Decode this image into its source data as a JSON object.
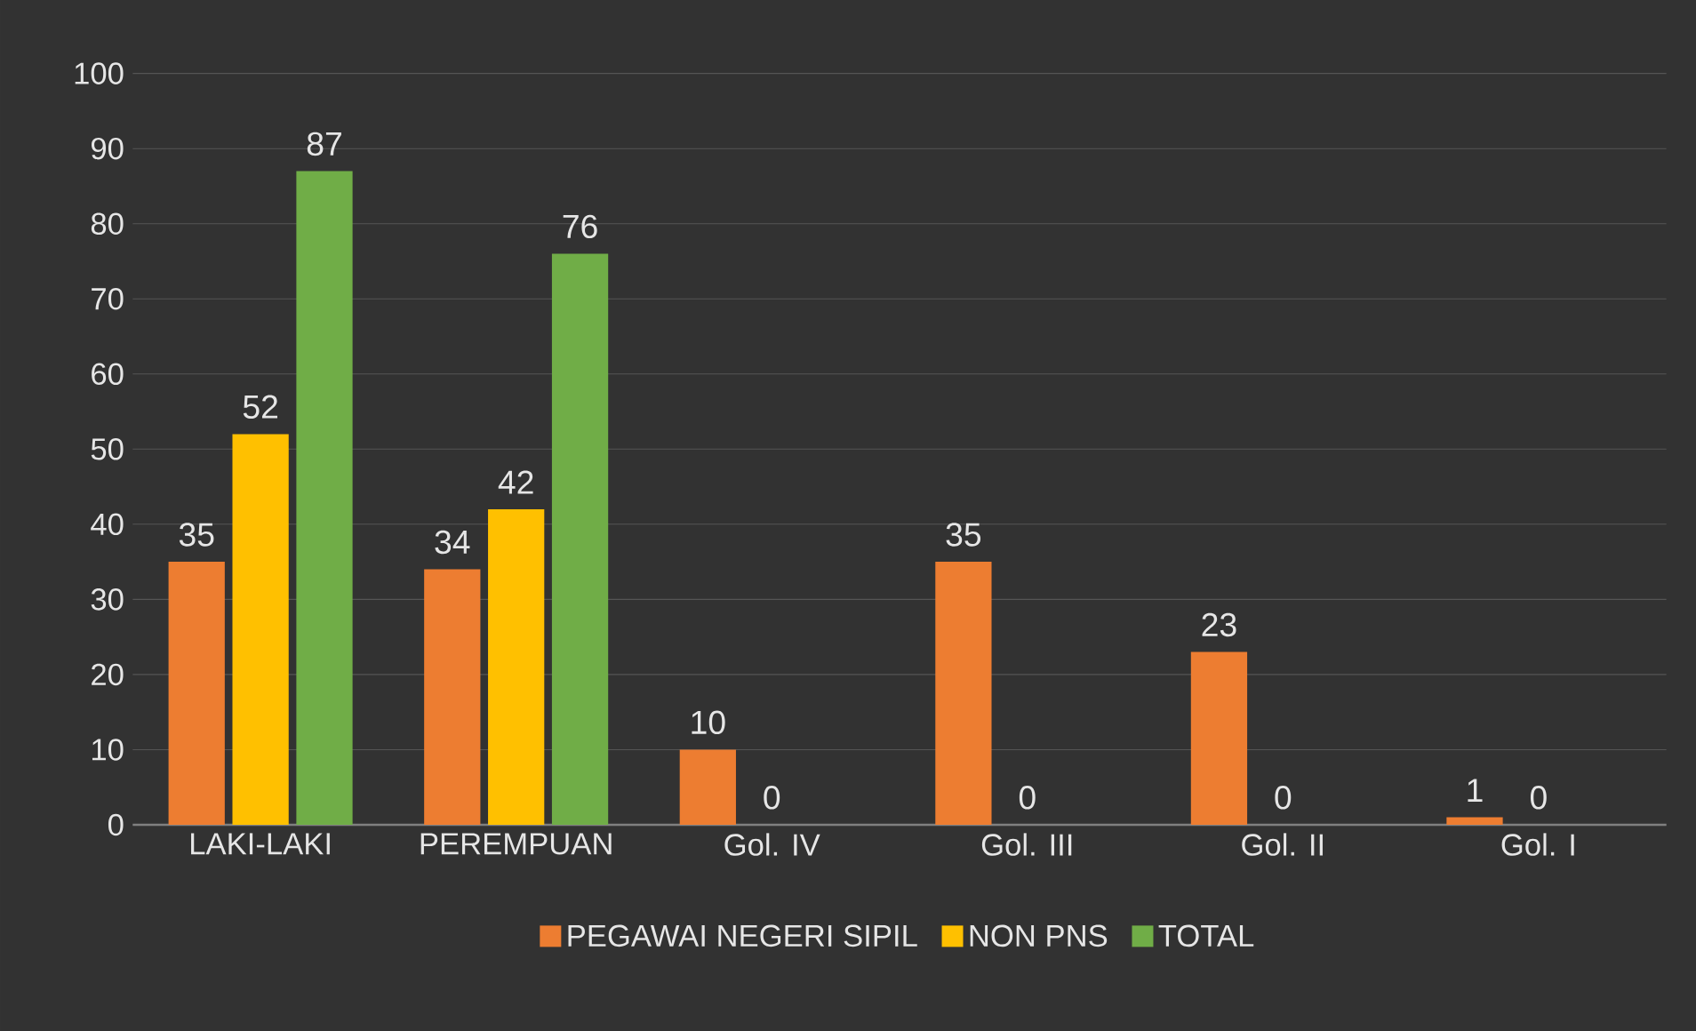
{
  "chart_data": {
    "type": "bar",
    "categories": [
      "LAKI-LAKI",
      "PEREMPUAN",
      "Gol. IV",
      "Gol. III",
      "Gol. II",
      "Gol. I"
    ],
    "series": [
      {
        "name": "PEGAWAI NEGERI SIPIL",
        "color": "#ed7d31",
        "values": [
          35,
          34,
          10,
          35,
          23,
          1
        ]
      },
      {
        "name": "NON PNS",
        "color": "#ffc000",
        "values": [
          52,
          42,
          0,
          0,
          0,
          0
        ]
      },
      {
        "name": "TOTAL",
        "color": "#70ad47",
        "values": [
          87,
          76,
          null,
          null,
          null,
          null
        ]
      }
    ],
    "ylim": [
      0,
      100
    ],
    "yticks": [
      0,
      10,
      20,
      30,
      40,
      50,
      60,
      70,
      80,
      90,
      100
    ],
    "grid": "y",
    "legend": "bottom",
    "data_labels": true
  }
}
